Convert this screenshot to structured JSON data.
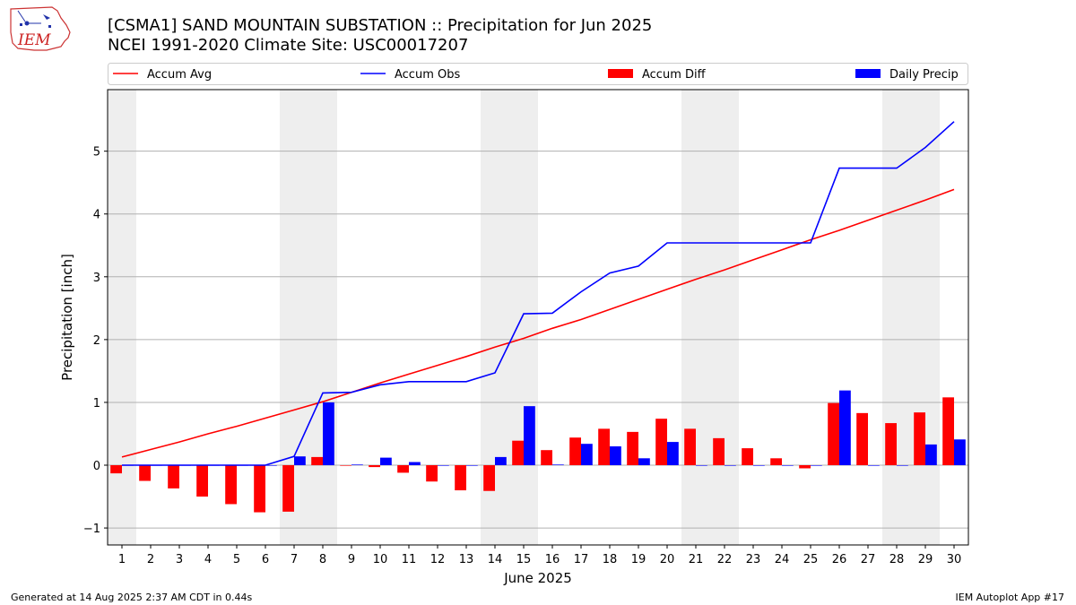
{
  "title_line1": "[CSMA1] SAND MOUNTAIN SUBSTATION :: Precipitation for Jun 2025",
  "title_line2": "NCEI 1991-2020 Climate Site: USC00017207",
  "logo_text": "IEM",
  "footer_left": "Generated at 14 Aug 2025 2:37 AM CDT in 0.44s",
  "footer_right": "IEM Autoplot App #17",
  "colors": {
    "avg": "#ff0000",
    "obs": "#0000ff",
    "diff": "#ff0000",
    "daily": "#0000ff",
    "weekend": "#eeeeee",
    "grid": "#b0b0b0"
  },
  "chart_data": {
    "type": "bar",
    "title": "[CSMA1] SAND MOUNTAIN SUBSTATION :: Precipitation for Jun 2025",
    "xlabel": "June 2025",
    "ylabel": "Precipitation [inch]",
    "xlim": [
      0.5,
      30.5
    ],
    "ylim": [
      -1.27,
      5.98
    ],
    "yticks": [
      -1,
      0,
      1,
      2,
      3,
      4,
      5
    ],
    "grid": true,
    "legend_position": "top",
    "legend": [
      "Accum Avg",
      "Accum Obs",
      "Accum Diff",
      "Daily Precip"
    ],
    "weekend_days": [
      1,
      7,
      8,
      14,
      15,
      21,
      22,
      28,
      29
    ],
    "days": [
      1,
      2,
      3,
      4,
      5,
      6,
      7,
      8,
      9,
      10,
      11,
      12,
      13,
      14,
      15,
      16,
      17,
      18,
      19,
      20,
      21,
      22,
      23,
      24,
      25,
      26,
      27,
      28,
      29,
      30
    ],
    "series": [
      {
        "name": "Accum Avg",
        "kind": "line",
        "values": [
          0.13,
          0.25,
          0.37,
          0.5,
          0.62,
          0.75,
          0.88,
          1.01,
          1.16,
          1.31,
          1.45,
          1.59,
          1.73,
          1.88,
          2.02,
          2.18,
          2.32,
          2.48,
          2.64,
          2.8,
          2.96,
          3.11,
          3.27,
          3.43,
          3.59,
          3.74,
          3.9,
          4.06,
          4.22,
          4.39
        ]
      },
      {
        "name": "Accum Obs",
        "kind": "line",
        "values": [
          0,
          0,
          0,
          0,
          0,
          0,
          0.14,
          1.15,
          1.16,
          1.28,
          1.33,
          1.33,
          1.33,
          1.47,
          2.41,
          2.42,
          2.76,
          3.06,
          3.17,
          3.54,
          3.54,
          3.54,
          3.54,
          3.54,
          3.54,
          4.73,
          4.73,
          4.73,
          5.06,
          5.47
        ]
      },
      {
        "name": "Accum Diff",
        "kind": "bar",
        "values": [
          -0.13,
          -0.25,
          -0.37,
          -0.5,
          -0.62,
          -0.75,
          -0.74,
          0.13,
          0,
          -0.03,
          -0.12,
          -0.26,
          -0.4,
          -0.41,
          0.39,
          0.24,
          0.44,
          0.58,
          0.53,
          0.74,
          0.58,
          0.43,
          0.27,
          0.11,
          -0.05,
          0.99,
          0.83,
          0.67,
          0.84,
          1.08
        ]
      },
      {
        "name": "Daily Precip",
        "kind": "bar",
        "values": [
          0,
          0,
          0,
          0,
          0,
          0,
          0.14,
          1.0,
          0.01,
          0.12,
          0.05,
          0,
          0,
          0.13,
          0.94,
          0.01,
          0.34,
          0.3,
          0.11,
          0.37,
          0,
          0,
          0,
          0,
          0,
          1.19,
          0,
          0,
          0.33,
          0.41
        ]
      }
    ]
  }
}
